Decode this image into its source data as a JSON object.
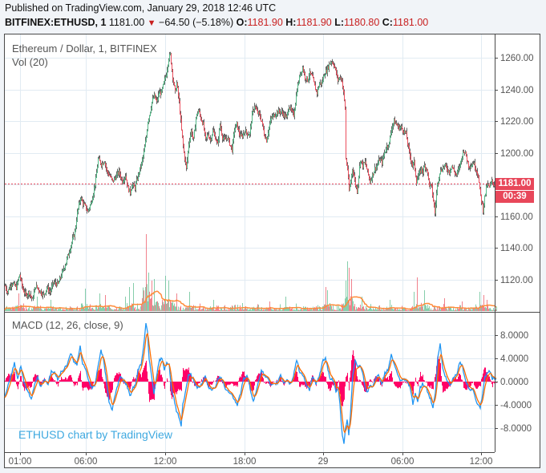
{
  "header": {
    "published": "Published on TradingView.com, January 29, 2018 12:46 UTC",
    "symbol": "BITFINEX:ETHUSD, 1",
    "last": "1181.00",
    "change_icon": "down-triangle-icon",
    "change": "−64.50 (−5.18%)",
    "o_label": "O:",
    "o": "1181.90",
    "h_label": "H:",
    "h": "1181.90",
    "l_label": "L:",
    "l": "1180.80",
    "c_label": "C:",
    "c": "1181.00"
  },
  "legend": {
    "title": "Ethereum / Dollar, 1, BITFINEX",
    "volume": "Vol (20)",
    "macd": "MACD (12, 26, close, 9)"
  },
  "watermark": "ETHUSD chart by TradingView",
  "price_tag": {
    "value": "1181.00",
    "countdown": "00:39"
  },
  "colors": {
    "up": "#53b987",
    "down": "#eb4d5c",
    "wick": "#666666",
    "macd": "#2196f3",
    "signal": "#ff6d00",
    "hist": "#ff0066",
    "vol_ma": "#ff8c3a",
    "grid": "#e1ebf3",
    "last_line": "#e8475a"
  },
  "chart_data": {
    "type": "candlestick",
    "title": "Ethereum / Dollar, 1, BITFINEX",
    "x_ticks": [
      "01:00",
      "06:00",
      "12:00",
      "18:00",
      "29",
      "06:00",
      "12:00"
    ],
    "price_axis": {
      "ticks": [
        "1260.00",
        "1240.00",
        "1220.00",
        "1200.00",
        "1160.00",
        "1140.00",
        "1120.00"
      ],
      "range": [
        1104,
        1276
      ]
    },
    "macd_axis": {
      "ticks": [
        "8.0000",
        "4.0000",
        "0.0000",
        "-4.0000",
        "-8.0000"
      ],
      "range": [
        -11,
        11
      ]
    },
    "last_price": 1181.0,
    "close_path": [
      [
        0,
        1116
      ],
      [
        3,
        1112
      ],
      [
        8,
        1118
      ],
      [
        14,
        1115
      ],
      [
        18,
        1123
      ],
      [
        22,
        1114
      ],
      [
        26,
        1110
      ],
      [
        30,
        1112
      ],
      [
        34,
        1107
      ],
      [
        38,
        1116
      ],
      [
        43,
        1113
      ],
      [
        48,
        1110
      ],
      [
        52,
        1115
      ],
      [
        56,
        1112
      ],
      [
        60,
        1118
      ],
      [
        66,
        1117
      ],
      [
        71,
        1124
      ],
      [
        76,
        1131
      ],
      [
        80,
        1138
      ],
      [
        84,
        1145
      ],
      [
        87,
        1150
      ],
      [
        90,
        1162
      ],
      [
        94,
        1172
      ],
      [
        97,
        1168
      ],
      [
        100,
        1166
      ],
      [
        103,
        1163
      ],
      [
        107,
        1168
      ],
      [
        110,
        1175
      ],
      [
        113,
        1183
      ],
      [
        116,
        1196
      ],
      [
        120,
        1193
      ],
      [
        124,
        1195
      ],
      [
        127,
        1188
      ],
      [
        130,
        1186
      ],
      [
        134,
        1182
      ],
      [
        138,
        1185
      ],
      [
        142,
        1188
      ],
      [
        146,
        1182
      ],
      [
        150,
        1186
      ],
      [
        153,
        1178
      ],
      [
        156,
        1175
      ],
      [
        158,
        1180
      ],
      [
        162,
        1178
      ],
      [
        166,
        1186
      ],
      [
        170,
        1193
      ],
      [
        173,
        1200
      ],
      [
        176,
        1210
      ],
      [
        178,
        1220
      ],
      [
        180,
        1224
      ],
      [
        183,
        1232
      ],
      [
        186,
        1236
      ],
      [
        189,
        1232
      ],
      [
        192,
        1238
      ],
      [
        195,
        1238
      ],
      [
        198,
        1244
      ],
      [
        201,
        1250
      ],
      [
        204,
        1260
      ],
      [
        206,
        1262
      ],
      [
        209,
        1248
      ],
      [
        212,
        1238
      ],
      [
        214,
        1244
      ],
      [
        217,
        1232
      ],
      [
        220,
        1214
      ],
      [
        223,
        1200
      ],
      [
        226,
        1190
      ],
      [
        229,
        1206
      ],
      [
        232,
        1214
      ],
      [
        235,
        1208
      ],
      [
        238,
        1222
      ],
      [
        241,
        1227
      ],
      [
        244,
        1222
      ],
      [
        247,
        1218
      ],
      [
        250,
        1208
      ],
      [
        253,
        1212
      ],
      [
        256,
        1208
      ],
      [
        259,
        1214
      ],
      [
        262,
        1210
      ],
      [
        265,
        1205
      ],
      [
        268,
        1218
      ],
      [
        271,
        1210
      ],
      [
        274,
        1208
      ],
      [
        277,
        1210
      ],
      [
        280,
        1206
      ],
      [
        283,
        1202
      ],
      [
        286,
        1215
      ],
      [
        289,
        1218
      ],
      [
        292,
        1212
      ],
      [
        295,
        1210
      ],
      [
        299,
        1214
      ],
      [
        302,
        1212
      ],
      [
        305,
        1212
      ],
      [
        308,
        1224
      ],
      [
        311,
        1230
      ],
      [
        314,
        1226
      ],
      [
        317,
        1224
      ],
      [
        320,
        1220
      ],
      [
        323,
        1212
      ],
      [
        326,
        1208
      ],
      [
        329,
        1216
      ],
      [
        332,
        1222
      ],
      [
        336,
        1224
      ],
      [
        340,
        1226
      ],
      [
        344,
        1226
      ],
      [
        348,
        1224
      ],
      [
        351,
        1222
      ],
      [
        354,
        1230
      ],
      [
        357,
        1226
      ],
      [
        360,
        1224
      ],
      [
        364,
        1240
      ],
      [
        368,
        1250
      ],
      [
        371,
        1254
      ],
      [
        374,
        1248
      ],
      [
        377,
        1246
      ],
      [
        380,
        1250
      ],
      [
        383,
        1248
      ],
      [
        386,
        1242
      ],
      [
        389,
        1238
      ],
      [
        392,
        1244
      ],
      [
        395,
        1244
      ],
      [
        398,
        1250
      ],
      [
        401,
        1252
      ],
      [
        404,
        1256
      ],
      [
        407,
        1258
      ],
      [
        410,
        1256
      ],
      [
        413,
        1250
      ],
      [
        415,
        1246
      ],
      [
        418,
        1248
      ],
      [
        420,
        1246
      ],
      [
        422,
        1238
      ],
      [
        424,
        1228
      ],
      [
        425,
        1196
      ],
      [
        427,
        1190
      ],
      [
        429,
        1176
      ],
      [
        431,
        1182
      ],
      [
        433,
        1190
      ],
      [
        435,
        1186
      ],
      [
        437,
        1180
      ],
      [
        439,
        1176
      ],
      [
        441,
        1186
      ],
      [
        443,
        1196
      ],
      [
        446,
        1192
      ],
      [
        449,
        1194
      ],
      [
        452,
        1188
      ],
      [
        455,
        1182
      ],
      [
        458,
        1186
      ],
      [
        461,
        1190
      ],
      [
        464,
        1192
      ],
      [
        467,
        1196
      ],
      [
        470,
        1194
      ],
      [
        473,
        1200
      ],
      [
        476,
        1204
      ],
      [
        479,
        1206
      ],
      [
        482,
        1216
      ],
      [
        485,
        1220
      ],
      [
        488,
        1218
      ],
      [
        491,
        1216
      ],
      [
        494,
        1216
      ],
      [
        497,
        1214
      ],
      [
        500,
        1212
      ],
      [
        502,
        1206
      ],
      [
        504,
        1200
      ],
      [
        506,
        1196
      ],
      [
        508,
        1192
      ],
      [
        510,
        1194
      ],
      [
        513,
        1182
      ],
      [
        516,
        1186
      ],
      [
        519,
        1190
      ],
      [
        521,
        1188
      ],
      [
        523,
        1192
      ],
      [
        526,
        1190
      ],
      [
        529,
        1180
      ],
      [
        532,
        1178
      ],
      [
        534,
        1170
      ],
      [
        536,
        1162
      ],
      [
        539,
        1180
      ],
      [
        542,
        1188
      ],
      [
        545,
        1190
      ],
      [
        548,
        1192
      ],
      [
        551,
        1190
      ],
      [
        554,
        1188
      ],
      [
        557,
        1192
      ],
      [
        560,
        1188
      ],
      [
        563,
        1186
      ],
      [
        566,
        1190
      ],
      [
        569,
        1196
      ],
      [
        572,
        1202
      ],
      [
        575,
        1198
      ],
      [
        578,
        1192
      ],
      [
        581,
        1192
      ],
      [
        584,
        1194
      ],
      [
        587,
        1190
      ],
      [
        590,
        1186
      ],
      [
        592,
        1176
      ],
      [
        594,
        1170
      ],
      [
        596,
        1164
      ],
      [
        598,
        1172
      ],
      [
        601,
        1180
      ],
      [
        604,
        1178
      ],
      [
        607,
        1182
      ],
      [
        610,
        1180
      ],
      [
        613,
        1181
      ]
    ],
    "volume_spikes": [
      [
        17,
        22
      ],
      [
        40,
        18
      ],
      [
        57,
        14
      ],
      [
        100,
        28
      ],
      [
        118,
        22
      ],
      [
        125,
        20
      ],
      [
        150,
        18
      ],
      [
        155,
        30
      ],
      [
        160,
        35
      ],
      [
        176,
        96
      ],
      [
        179,
        48
      ],
      [
        183,
        38
      ],
      [
        186,
        40
      ],
      [
        200,
        44
      ],
      [
        204,
        38
      ],
      [
        206,
        14
      ],
      [
        214,
        22
      ],
      [
        230,
        24
      ],
      [
        260,
        14
      ],
      [
        296,
        10
      ],
      [
        330,
        12
      ],
      [
        350,
        18
      ],
      [
        400,
        30
      ],
      [
        402,
        26
      ],
      [
        405,
        10
      ],
      [
        425,
        38
      ],
      [
        427,
        62
      ],
      [
        429,
        54
      ],
      [
        432,
        40
      ],
      [
        445,
        18
      ],
      [
        480,
        14
      ],
      [
        510,
        24
      ],
      [
        514,
        42
      ],
      [
        523,
        26
      ],
      [
        548,
        16
      ],
      [
        570,
        12
      ],
      [
        592,
        24
      ],
      [
        597,
        20
      ],
      [
        601,
        14
      ]
    ],
    "macd_points": [
      [
        8,
        1.2
      ],
      [
        12,
        3.2
      ],
      [
        16,
        0.5
      ],
      [
        20,
        2.8
      ],
      [
        24,
        -0.2
      ],
      [
        28,
        -1.5
      ],
      [
        33,
        -3
      ],
      [
        37,
        -0.5
      ],
      [
        41,
        0.8
      ],
      [
        45,
        -1
      ],
      [
        49,
        0.5
      ],
      [
        54,
        -0.4
      ],
      [
        58,
        1.8
      ],
      [
        62,
        1.5
      ],
      [
        66,
        0.5
      ],
      [
        70,
        1.6
      ],
      [
        74,
        2.2
      ],
      [
        78,
        3.0
      ],
      [
        82,
        5.0
      ],
      [
        86,
        3.4
      ],
      [
        90,
        3.0
      ],
      [
        94,
        6.1
      ],
      [
        97,
        3.0
      ],
      [
        101,
        2.0
      ],
      [
        104,
        0.5
      ],
      [
        108,
        -1.0
      ],
      [
        112,
        -0.8
      ],
      [
        116,
        2.5
      ],
      [
        120,
        5.5
      ],
      [
        123,
        3.8
      ],
      [
        126,
        1.0
      ],
      [
        130,
        -3.5
      ],
      [
        134,
        -5.0
      ],
      [
        137,
        -2.5
      ],
      [
        140,
        -1.0
      ],
      [
        144,
        1.0
      ],
      [
        148,
        0.2
      ],
      [
        152,
        -0.5
      ],
      [
        156,
        -2.5
      ],
      [
        160,
        -1.0
      ],
      [
        163,
        -0.6
      ],
      [
        166,
        2.0
      ],
      [
        170,
        3.0
      ],
      [
        173,
        6.0
      ],
      [
        176,
        10.0
      ],
      [
        178,
        8.5
      ],
      [
        180,
        4.0
      ],
      [
        183,
        1.2
      ],
      [
        186,
        -2.0
      ],
      [
        190,
        1.5
      ],
      [
        193,
        3.8
      ],
      [
        196,
        4.0
      ],
      [
        199,
        2.0
      ],
      [
        202,
        3.2
      ],
      [
        205,
        2.8
      ],
      [
        208,
        -1.5
      ],
      [
        211,
        -3.0
      ],
      [
        214,
        -5.0
      ],
      [
        217,
        -6.0
      ],
      [
        220,
        -7.5
      ],
      [
        222,
        -4.0
      ],
      [
        225,
        -2.0
      ],
      [
        229,
        1.0
      ],
      [
        232,
        1.2
      ],
      [
        235,
        0.5
      ],
      [
        238,
        -0.6
      ],
      [
        242,
        -1.2
      ],
      [
        246,
        -0.4
      ],
      [
        250,
        1.0
      ],
      [
        254,
        -1.0
      ],
      [
        258,
        -1.3
      ],
      [
        262,
        -1.0
      ],
      [
        266,
        0.4
      ],
      [
        270,
        0.8
      ],
      [
        274,
        -1.0
      ],
      [
        278,
        -1.5
      ],
      [
        282,
        -2.0
      ],
      [
        286,
        -3.0
      ],
      [
        290,
        -4.0
      ],
      [
        294,
        -2.0
      ],
      [
        298,
        0.5
      ],
      [
        302,
        1.0
      ],
      [
        305,
        -0.5
      ],
      [
        310,
        -3.5
      ],
      [
        313,
        -2.0
      ],
      [
        317,
        0.5
      ],
      [
        320,
        2.0
      ],
      [
        324,
        1.0
      ],
      [
        328,
        0.5
      ],
      [
        332,
        -0.8
      ],
      [
        336,
        -0.5
      ],
      [
        340,
        -0.2
      ],
      [
        344,
        1.2
      ],
      [
        348,
        -0.2
      ],
      [
        352,
        0.4
      ],
      [
        356,
        -0.5
      ],
      [
        360,
        1.0
      ],
      [
        364,
        3.8
      ],
      [
        368,
        1.5
      ],
      [
        372,
        1.2
      ],
      [
        376,
        -0.5
      ],
      [
        380,
        -1.5
      ],
      [
        384,
        0.8
      ],
      [
        388,
        -0.3
      ],
      [
        392,
        0.6
      ],
      [
        396,
        3.5
      ],
      [
        400,
        4.2
      ],
      [
        403,
        2.0
      ],
      [
        406,
        0.5
      ],
      [
        410,
        0.2
      ],
      [
        413,
        -2.0
      ],
      [
        416,
        -1.0
      ],
      [
        418,
        -4.0
      ],
      [
        421,
        -9.5
      ],
      [
        423,
        -10.5
      ],
      [
        425,
        -8.0
      ],
      [
        427,
        -6.5
      ],
      [
        429,
        -9.0
      ],
      [
        431,
        -6.0
      ],
      [
        434,
        1.2
      ],
      [
        437,
        3.8
      ],
      [
        440,
        2.5
      ],
      [
        443,
        3.0
      ],
      [
        446,
        1.5
      ],
      [
        449,
        -0.5
      ],
      [
        452,
        -2.0
      ],
      [
        455,
        -0.6
      ],
      [
        458,
        -1.0
      ],
      [
        462,
        0.4
      ],
      [
        466,
        1.0
      ],
      [
        470,
        -0.4
      ],
      [
        474,
        1.5
      ],
      [
        478,
        2.0
      ],
      [
        482,
        4.5
      ],
      [
        486,
        3.0
      ],
      [
        490,
        1.0
      ],
      [
        494,
        0.0
      ],
      [
        498,
        0.4
      ],
      [
        502,
        0.0
      ],
      [
        506,
        -1.2
      ],
      [
        509,
        -4.0
      ],
      [
        512,
        -2.0
      ],
      [
        515,
        -3.5
      ],
      [
        518,
        -1.0
      ],
      [
        521,
        -0.4
      ],
      [
        525,
        -0.8
      ],
      [
        528,
        -2.0
      ],
      [
        531,
        -3.0
      ],
      [
        534,
        -4.5
      ],
      [
        537,
        -2.0
      ],
      [
        540,
        4.0
      ],
      [
        543,
        6.5
      ],
      [
        546,
        2.5
      ],
      [
        549,
        1.0
      ],
      [
        552,
        0.2
      ],
      [
        556,
        -0.6
      ],
      [
        560,
        0.8
      ],
      [
        564,
        1.5
      ],
      [
        568,
        3.5
      ],
      [
        571,
        2.5
      ],
      [
        574,
        0.5
      ],
      [
        578,
        -1.0
      ],
      [
        581,
        -1.5
      ],
      [
        584,
        -1.0
      ],
      [
        587,
        -3.0
      ],
      [
        590,
        -4.0
      ],
      [
        593,
        -4.5
      ],
      [
        596,
        -2.0
      ],
      [
        599,
        0.8
      ],
      [
        602,
        1.6
      ],
      [
        605,
        1.8
      ],
      [
        608,
        0.5
      ],
      [
        612,
        0.6
      ]
    ]
  }
}
